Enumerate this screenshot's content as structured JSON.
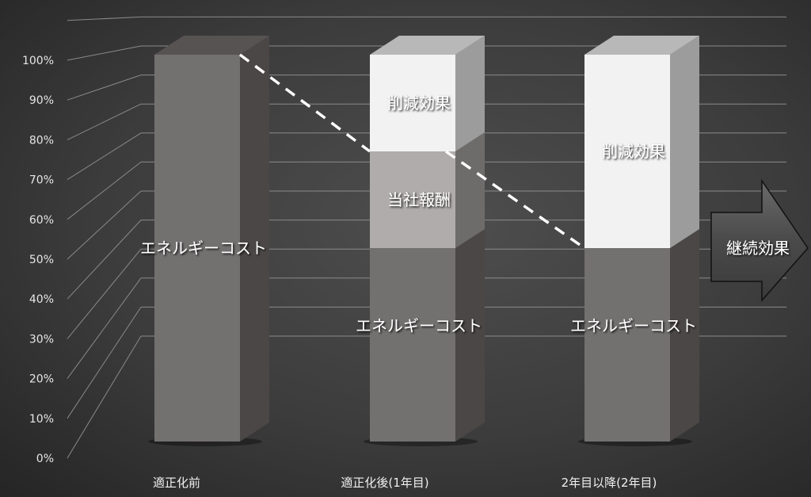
{
  "chart_data": {
    "type": "bar",
    "stacked": true,
    "three_d": true,
    "title": "",
    "xlabel": "",
    "ylabel": "",
    "ylim": [
      0,
      100
    ],
    "y_ticks": [
      "0%",
      "10%",
      "20%",
      "30%",
      "40%",
      "50%",
      "60%",
      "70%",
      "80%",
      "90%",
      "100%"
    ],
    "grid": true,
    "legend": "none",
    "categories": [
      "適正化前",
      "適正化後(1年目)",
      "2年目以降(2年目)"
    ],
    "series": [
      {
        "name": "エネルギーコスト",
        "values": [
          100,
          50,
          50
        ],
        "color": "#737070"
      },
      {
        "name": "当社報酬",
        "values": [
          0,
          25,
          0
        ],
        "color": "#b0acab"
      },
      {
        "name": "削減効果",
        "values": [
          0,
          25,
          50
        ],
        "color": "#f2f2f2"
      }
    ],
    "trend_line": {
      "style": "dashed",
      "color": "#ffffff",
      "values": [
        100,
        75,
        50
      ]
    },
    "annotation": {
      "text": "継続効果",
      "shape": "right-arrow"
    }
  }
}
